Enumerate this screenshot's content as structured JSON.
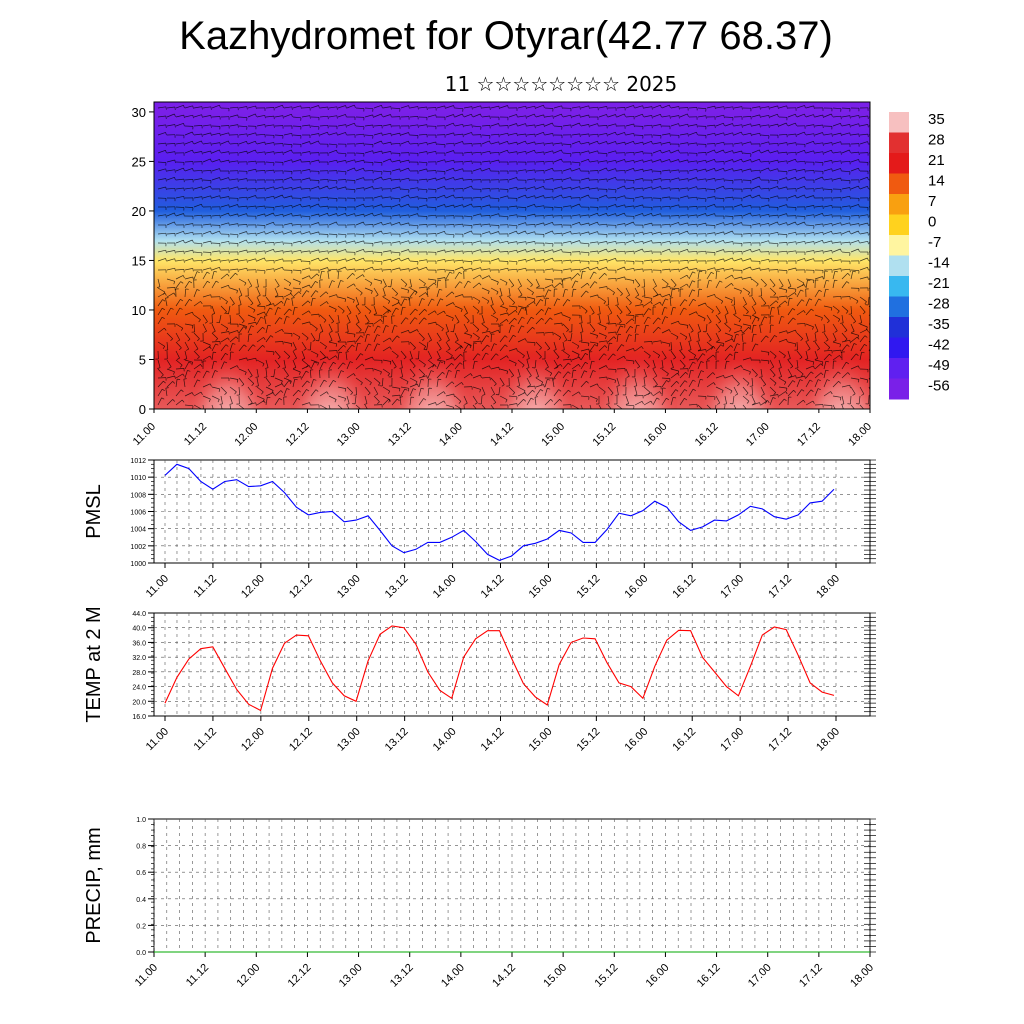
{
  "page": {
    "title": "Kazhydromet for Otyrar(42.77 68.37)",
    "subtitle": "11 ☆☆☆☆☆☆☆☆ 2025"
  },
  "chart_data": [
    {
      "type": "heatmap",
      "name": "temperature-height-section",
      "title": "",
      "xlabel": "",
      "ylabel": "",
      "x_tick_labels": [
        "11.00",
        "11.12",
        "12.00",
        "12.12",
        "13.00",
        "13.12",
        "14.00",
        "14.12",
        "15.00",
        "15.12",
        "16.00",
        "16.12",
        "17.00",
        "17.12",
        "18.00"
      ],
      "y_tick_labels": [
        "0",
        "5",
        "10",
        "15",
        "20",
        "25",
        "30"
      ],
      "ylim": [
        0,
        31
      ],
      "colorbar_labels": [
        "35",
        "28",
        "21",
        "14",
        "7",
        "0",
        "-7",
        "-14",
        "-21",
        "-28",
        "-35",
        "-42",
        "-49",
        "-56"
      ],
      "colorbar_colors": [
        "#f7c0c0",
        "#e23030",
        "#e41a1a",
        "#f05a10",
        "#f9a010",
        "#ffd21e",
        "#fff5a0",
        "#b0e0f0",
        "#38b8f0",
        "#2070e0",
        "#2030d8",
        "#3018f0",
        "#6020f0",
        "#7a20e8"
      ],
      "overlay": "wind barbs",
      "levels_temperature": [
        {
          "height": 0,
          "temp": 30
        },
        {
          "height": 5,
          "temp": 24
        },
        {
          "height": 10,
          "temp": 14
        },
        {
          "height": 15,
          "temp": -4
        },
        {
          "height": 17,
          "temp": -14
        },
        {
          "height": 20,
          "temp": -30
        },
        {
          "height": 25,
          "temp": -48
        },
        {
          "height": 30,
          "temp": -56
        }
      ]
    },
    {
      "type": "line",
      "name": "pmsl",
      "ylabel": "PMSL",
      "ylim": [
        1000,
        1012
      ],
      "y_ticks": [
        1000,
        1002,
        1004,
        1006,
        1008,
        1010,
        1012
      ],
      "x_tick_labels": [
        "11.00",
        "11.12",
        "12.00",
        "12.12",
        "13.00",
        "13.12",
        "14.00",
        "14.12",
        "15.00",
        "15.12",
        "16.00",
        "16.12",
        "17.00",
        "17.12",
        "18.00"
      ],
      "grid": true,
      "line_color": "#0000ff",
      "series": [
        {
          "values": [
            1010.2,
            1011.5,
            1011.0,
            1009.5,
            1008.6,
            1009.5,
            1009.7,
            1008.9,
            1009.0,
            1009.5,
            1008.2,
            1006.5,
            1005.6,
            1005.9,
            1006.0,
            1004.8,
            1005.0,
            1005.5,
            1003.8,
            1002.0,
            1001.2,
            1001.6,
            1002.4,
            1002.4,
            1003.0,
            1003.8,
            1002.5,
            1001.0,
            1000.3,
            1000.8,
            1002.0,
            1002.3,
            1002.8,
            1003.8,
            1003.5,
            1002.4,
            1002.4,
            1003.9,
            1005.8,
            1005.5,
            1006.1,
            1007.2,
            1006.5,
            1004.8,
            1003.8,
            1004.2,
            1005.0,
            1004.9,
            1005.6,
            1006.6,
            1006.3,
            1005.4,
            1005.1,
            1005.6,
            1007.0,
            1007.2,
            1008.6
          ]
        }
      ]
    },
    {
      "type": "line",
      "name": "temp-2m",
      "ylabel": "TEMP at 2 M",
      "ylim": [
        16,
        44
      ],
      "y_ticks": [
        "16.0",
        "20.0",
        "24.0",
        "28.0",
        "32.0",
        "36.0",
        "40.0",
        "44.0"
      ],
      "x_tick_labels": [
        "11.00",
        "11.12",
        "12.00",
        "12.12",
        "13.00",
        "13.12",
        "14.00",
        "14.12",
        "15.00",
        "15.12",
        "16.00",
        "16.12",
        "17.00",
        "17.12",
        "18.00"
      ],
      "grid": true,
      "line_color": "#ff0000",
      "series": [
        {
          "values": [
            19.5,
            26.5,
            31.5,
            34.3,
            34.8,
            29.0,
            23.2,
            19.2,
            17.5,
            29.0,
            35.8,
            38.0,
            37.8,
            31.0,
            25.0,
            21.5,
            20.0,
            31.0,
            38.2,
            40.5,
            40.0,
            35.5,
            28.0,
            23.0,
            20.8,
            32.0,
            37.0,
            39.2,
            39.2,
            31.8,
            24.8,
            21.2,
            19.0,
            30.0,
            36.0,
            37.2,
            37.0,
            30.5,
            25.0,
            24.0,
            20.8,
            29.5,
            36.6,
            39.3,
            39.2,
            31.9,
            28.0,
            24.0,
            21.5,
            29.5,
            38.0,
            40.2,
            39.5,
            32.5,
            25.0,
            22.5,
            21.6
          ]
        }
      ]
    },
    {
      "type": "line",
      "name": "precip",
      "ylabel": "PRECIP, mm",
      "ylim": [
        0,
        1.0
      ],
      "y_ticks": [
        "0.0",
        "0.2",
        "0.4",
        "0.6",
        "0.8",
        "1.0"
      ],
      "x_tick_labels": [
        "11.00",
        "11.12",
        "12.00",
        "12.12",
        "13.00",
        "13.12",
        "14.00",
        "14.12",
        "15.00",
        "15.12",
        "16.00",
        "16.12",
        "17.00",
        "17.12",
        "18.00"
      ],
      "grid": true,
      "line_color": "#00aa00",
      "series": [
        {
          "values": [
            0,
            0,
            0,
            0,
            0,
            0,
            0,
            0,
            0,
            0,
            0,
            0,
            0,
            0,
            0,
            0,
            0,
            0,
            0,
            0,
            0,
            0,
            0,
            0,
            0,
            0,
            0,
            0,
            0,
            0,
            0,
            0,
            0,
            0,
            0,
            0,
            0,
            0,
            0,
            0,
            0,
            0,
            0,
            0,
            0,
            0,
            0,
            0,
            0,
            0,
            0,
            0,
            0,
            0,
            0,
            0,
            0
          ]
        }
      ]
    }
  ]
}
